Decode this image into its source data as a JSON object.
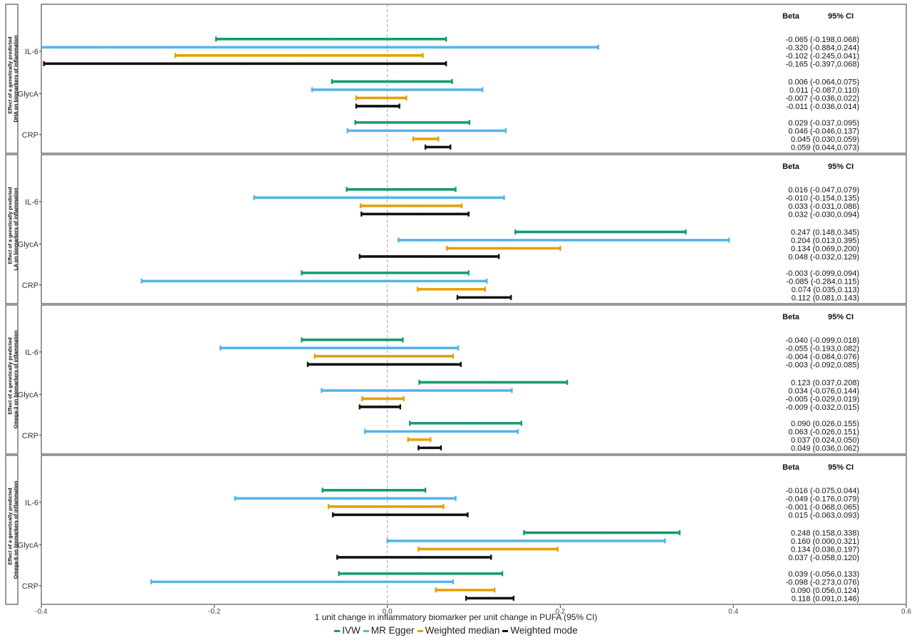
{
  "chart_data": {
    "type": "forest",
    "xlabel": "1 unit change in inflammatory biomarker per unit change in PUFA (95% CI)",
    "xlim": [
      -0.4,
      0.6
    ],
    "xticks": [
      -0.4,
      -0.2,
      0.0,
      0.2,
      0.4,
      0.6
    ],
    "xtick_labels": [
      "-0.4",
      "-0.2",
      "0.0",
      "0.2",
      "0.4",
      "0.6"
    ],
    "reference_line": 0,
    "legend_position": "bottom",
    "column_headers": {
      "beta": "Beta",
      "ci": "95% CI"
    },
    "series": [
      {
        "name": "IVW",
        "color": "#159a72"
      },
      {
        "name": "MR Egger",
        "color": "#56b4e9"
      },
      {
        "name": "Weighted median",
        "color": "#e69f00"
      },
      {
        "name": "Weighted mode",
        "color": "#111111"
      }
    ],
    "panels": [
      {
        "title_line1": "Effect of a genetically predicted",
        "title_line2": "DHA on biomarkers of inflammation",
        "groups": [
          {
            "label": "IL-6",
            "rows": [
              {
                "est": -0.065,
                "lo": -0.198,
                "hi": 0.068,
                "text": "-0.065 (-0.198,0.068)"
              },
              {
                "est": -0.32,
                "lo": -0.884,
                "hi": 0.244,
                "text": "-0.320 (-0.884,0.244)"
              },
              {
                "est": -0.102,
                "lo": -0.245,
                "hi": 0.041,
                "text": "-0.102 (-0.245,0.041)"
              },
              {
                "est": -0.165,
                "lo": -0.397,
                "hi": 0.068,
                "text": "-0.165 (-0.397,0.068)"
              }
            ]
          },
          {
            "label": "GlycA",
            "rows": [
              {
                "est": 0.006,
                "lo": -0.064,
                "hi": 0.075,
                "text": "0.006 (-0.064,0.075)"
              },
              {
                "est": 0.011,
                "lo": -0.087,
                "hi": 0.11,
                "text": "0.011 (-0.087,0.110)"
              },
              {
                "est": -0.007,
                "lo": -0.036,
                "hi": 0.022,
                "text": "-0.007 (-0.036,0.022)"
              },
              {
                "est": -0.011,
                "lo": -0.036,
                "hi": 0.014,
                "text": "-0.011 (-0.036,0.014)"
              }
            ]
          },
          {
            "label": "CRP",
            "rows": [
              {
                "est": 0.029,
                "lo": -0.037,
                "hi": 0.095,
                "text": "0.029 (-0.037,0.095)"
              },
              {
                "est": 0.046,
                "lo": -0.046,
                "hi": 0.137,
                "text": "0.046 (-0.046,0.137)"
              },
              {
                "est": 0.045,
                "lo": 0.03,
                "hi": 0.059,
                "text": "0.045 (0.030,0.059)"
              },
              {
                "est": 0.059,
                "lo": 0.044,
                "hi": 0.073,
                "text": "0.059 (0.044,0.073)"
              }
            ]
          }
        ]
      },
      {
        "title_line1": "Effect of a genetically predicted",
        "title_line2": "LA on biomarkers of inflammation",
        "groups": [
          {
            "label": "IL-6",
            "rows": [
              {
                "est": 0.016,
                "lo": -0.047,
                "hi": 0.079,
                "text": "0.016 (-0.047,0.079)"
              },
              {
                "est": -0.01,
                "lo": -0.154,
                "hi": 0.135,
                "text": "-0.010 (-0.154,0.135)"
              },
              {
                "est": 0.033,
                "lo": -0.031,
                "hi": 0.086,
                "text": "0.033 (-0.031,0.086)"
              },
              {
                "est": 0.032,
                "lo": -0.03,
                "hi": 0.094,
                "text": "0.032 (-0.030,0.094)"
              }
            ]
          },
          {
            "label": "GlycA",
            "rows": [
              {
                "est": 0.247,
                "lo": 0.148,
                "hi": 0.345,
                "text": "0.247 (0.148,0.345)"
              },
              {
                "est": 0.204,
                "lo": 0.013,
                "hi": 0.395,
                "text": "0.204 (0.013,0.395)"
              },
              {
                "est": 0.134,
                "lo": 0.069,
                "hi": 0.2,
                "text": "0.134 (0.069,0.200)"
              },
              {
                "est": 0.048,
                "lo": -0.032,
                "hi": 0.129,
                "text": "0.048 (-0.032,0.129)"
              }
            ]
          },
          {
            "label": "CRP",
            "rows": [
              {
                "est": -0.003,
                "lo": -0.099,
                "hi": 0.094,
                "text": "-0.003 (-0.099,0.094)"
              },
              {
                "est": -0.085,
                "lo": -0.284,
                "hi": 0.115,
                "text": "-0.085 (-0.284,0.115)"
              },
              {
                "est": 0.074,
                "lo": 0.035,
                "hi": 0.113,
                "text": "0.074 (0.035,0.113)"
              },
              {
                "est": 0.112,
                "lo": 0.081,
                "hi": 0.143,
                "text": "0.112 (0.081,0.143)"
              }
            ]
          }
        ]
      },
      {
        "title_line1": "Effect of a genetically predicted",
        "title_line2": "Omega-3 on biomarkers of inflammation",
        "groups": [
          {
            "label": "IL-6",
            "rows": [
              {
                "est": -0.04,
                "lo": -0.099,
                "hi": 0.018,
                "text": "-0.040 (-0.099,0.018)"
              },
              {
                "est": -0.055,
                "lo": -0.193,
                "hi": 0.082,
                "text": "-0.055 (-0.193,0.082)"
              },
              {
                "est": -0.004,
                "lo": -0.084,
                "hi": 0.076,
                "text": "-0.004 (-0.084,0.076)"
              },
              {
                "est": -0.003,
                "lo": -0.092,
                "hi": 0.085,
                "text": "-0.003 (-0.092,0.085)"
              }
            ]
          },
          {
            "label": "GlycA",
            "rows": [
              {
                "est": 0.123,
                "lo": 0.037,
                "hi": 0.208,
                "text": "0.123 (0.037,0.208)"
              },
              {
                "est": 0.034,
                "lo": -0.076,
                "hi": 0.144,
                "text": "0.034 (-0.076,0.144)"
              },
              {
                "est": -0.005,
                "lo": -0.029,
                "hi": 0.019,
                "text": "-0.005 (-0.029,0.019)"
              },
              {
                "est": -0.009,
                "lo": -0.032,
                "hi": 0.015,
                "text": "-0.009 (-0.032,0.015)"
              }
            ]
          },
          {
            "label": "CRP",
            "rows": [
              {
                "est": 0.09,
                "lo": 0.026,
                "hi": 0.155,
                "text": "0.090 (0.026,0.155)"
              },
              {
                "est": 0.063,
                "lo": -0.026,
                "hi": 0.151,
                "text": "0.063 (-0.026,0.151)"
              },
              {
                "est": 0.037,
                "lo": 0.024,
                "hi": 0.05,
                "text": "0.037 (0.024,0.050)"
              },
              {
                "est": 0.049,
                "lo": 0.036,
                "hi": 0.062,
                "text": "0.049 (0.036,0.062)"
              }
            ]
          }
        ]
      },
      {
        "title_line1": "Effect of a genetically predicted",
        "title_line2": "Omega-6 on biomarkers of inflammation",
        "groups": [
          {
            "label": "IL-6",
            "rows": [
              {
                "est": -0.016,
                "lo": -0.075,
                "hi": 0.044,
                "text": "-0.016 (-0.075,0.044)"
              },
              {
                "est": -0.049,
                "lo": -0.176,
                "hi": 0.079,
                "text": "-0.049 (-0.176,0.079)"
              },
              {
                "est": -0.001,
                "lo": -0.068,
                "hi": 0.065,
                "text": "-0.001 (-0.068,0.065)"
              },
              {
                "est": 0.015,
                "lo": -0.063,
                "hi": 0.093,
                "text": "0.015 (-0.063,0.093)"
              }
            ]
          },
          {
            "label": "GlycA",
            "rows": [
              {
                "est": 0.248,
                "lo": 0.158,
                "hi": 0.338,
                "text": "0.248 (0.158,0.338)"
              },
              {
                "est": 0.16,
                "lo": 0.0,
                "hi": 0.321,
                "text": "0.160 (0.000,0.321)"
              },
              {
                "est": 0.134,
                "lo": 0.036,
                "hi": 0.197,
                "text": "0.134 (0.036,0.197)"
              },
              {
                "est": 0.037,
                "lo": -0.058,
                "hi": 0.12,
                "text": "0.037 (-0.058,0.120)"
              }
            ]
          },
          {
            "label": "CRP",
            "rows": [
              {
                "est": 0.039,
                "lo": -0.056,
                "hi": 0.133,
                "text": "0.039 (-0.056,0.133)"
              },
              {
                "est": -0.098,
                "lo": -0.273,
                "hi": 0.076,
                "text": "-0.098 (-0.273,0.076)"
              },
              {
                "est": 0.09,
                "lo": 0.056,
                "hi": 0.124,
                "text": "0.090 (0.056,0.124)"
              },
              {
                "est": 0.118,
                "lo": 0.091,
                "hi": 0.146,
                "text": "0.118 (0.091,0.146)"
              }
            ]
          }
        ]
      }
    ]
  }
}
